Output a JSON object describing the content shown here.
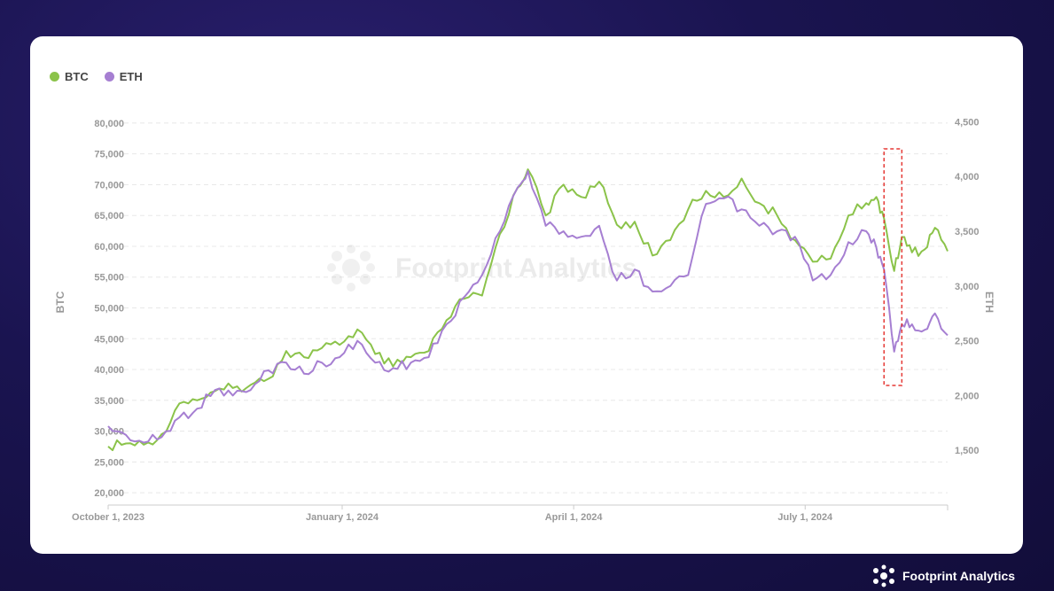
{
  "colors": {
    "btc": "#8bc34a",
    "eth": "#a67fd2",
    "highlight": "#e53935",
    "grid": "#e8e8e8",
    "axis_text": "#999999"
  },
  "legend": [
    {
      "name": "BTC"
    },
    {
      "name": "ETH"
    }
  ],
  "watermark": "Footprint Analytics",
  "brand": {
    "text": "Footprint Analytics",
    "icon": "footprint-logo-icon"
  },
  "chart_data": {
    "type": "line",
    "xlabel": "",
    "y_left_label": "BTC",
    "y_right_label": "ETH",
    "x_tick_labels": [
      "October 1, 2023",
      "January 1, 2024",
      "April 1, 2024",
      "July 1, 2024"
    ],
    "y_left_ticks": [
      20000,
      25000,
      30000,
      35000,
      40000,
      45000,
      50000,
      55000,
      60000,
      65000,
      70000,
      75000,
      80000
    ],
    "y_left_tick_labels": [
      "20,000",
      "25,000",
      "30,000",
      "35,000",
      "40,000",
      "45,000",
      "50,000",
      "55,000",
      "60,000",
      "65,000",
      "70,000",
      "75,000",
      "80,000"
    ],
    "y_right_ticks": [
      1500,
      2000,
      2500,
      3000,
      3500,
      4000,
      4500
    ],
    "y_right_tick_labels": [
      "1,500",
      "2,000",
      "2,500",
      "3,000",
      "3,500",
      "4,000",
      "4,500"
    ],
    "x_range": [
      "2023-10-01",
      "2024-08-26"
    ],
    "y_left_range": [
      18000,
      82000
    ],
    "y_right_range": [
      1000,
      4600
    ],
    "grid": true,
    "legend_position": "top-left",
    "highlight_range": [
      "2024-08-01",
      "2024-08-08"
    ],
    "series": [
      {
        "name": "BTC",
        "axis": "left",
        "points": [
          [
            "2023-10-01",
            27500
          ],
          [
            "2023-10-08",
            28000
          ],
          [
            "2023-10-15",
            27800
          ],
          [
            "2023-10-22",
            29500
          ],
          [
            "2023-10-29",
            34500
          ],
          [
            "2023-11-05",
            35000
          ],
          [
            "2023-11-12",
            36500
          ],
          [
            "2023-11-19",
            37000
          ],
          [
            "2023-11-26",
            37500
          ],
          [
            "2023-12-03",
            38500
          ],
          [
            "2023-12-10",
            43000
          ],
          [
            "2023-12-17",
            42000
          ],
          [
            "2023-12-24",
            43500
          ],
          [
            "2023-12-31",
            44000
          ],
          [
            "2024-01-07",
            46500
          ],
          [
            "2024-01-14",
            42500
          ],
          [
            "2024-01-21",
            40500
          ],
          [
            "2024-01-28",
            42000
          ],
          [
            "2024-02-04",
            43000
          ],
          [
            "2024-02-11",
            48000
          ],
          [
            "2024-02-18",
            51500
          ],
          [
            "2024-02-25",
            52000
          ],
          [
            "2024-03-03",
            62000
          ],
          [
            "2024-03-10",
            69500
          ],
          [
            "2024-03-14",
            72500
          ],
          [
            "2024-03-21",
            65000
          ],
          [
            "2024-03-28",
            70000
          ],
          [
            "2024-04-04",
            68000
          ],
          [
            "2024-04-11",
            70500
          ],
          [
            "2024-04-18",
            63500
          ],
          [
            "2024-04-25",
            64000
          ],
          [
            "2024-05-02",
            58500
          ],
          [
            "2024-05-09",
            61000
          ],
          [
            "2024-05-16",
            66000
          ],
          [
            "2024-05-23",
            69000
          ],
          [
            "2024-05-30",
            68000
          ],
          [
            "2024-06-06",
            71000
          ],
          [
            "2024-06-13",
            67000
          ],
          [
            "2024-06-20",
            65000
          ],
          [
            "2024-06-27",
            61000
          ],
          [
            "2024-07-04",
            57500
          ],
          [
            "2024-07-11",
            58000
          ],
          [
            "2024-07-18",
            65000
          ],
          [
            "2024-07-25",
            67000
          ],
          [
            "2024-07-29",
            68000
          ],
          [
            "2024-08-01",
            64500
          ],
          [
            "2024-08-05",
            56000
          ],
          [
            "2024-08-08",
            61500
          ],
          [
            "2024-08-12",
            59000
          ],
          [
            "2024-08-17",
            59500
          ],
          [
            "2024-08-21",
            63000
          ],
          [
            "2024-08-26",
            59200
          ]
        ]
      },
      {
        "name": "ETH",
        "axis": "right",
        "points": [
          [
            "2023-10-01",
            1720
          ],
          [
            "2023-10-08",
            1640
          ],
          [
            "2023-10-15",
            1570
          ],
          [
            "2023-10-22",
            1620
          ],
          [
            "2023-10-29",
            1800
          ],
          [
            "2023-11-05",
            1880
          ],
          [
            "2023-11-12",
            2050
          ],
          [
            "2023-11-19",
            2000
          ],
          [
            "2023-11-26",
            2050
          ],
          [
            "2023-12-03",
            2230
          ],
          [
            "2023-12-10",
            2300
          ],
          [
            "2023-12-17",
            2200
          ],
          [
            "2023-12-24",
            2300
          ],
          [
            "2023-12-31",
            2350
          ],
          [
            "2024-01-07",
            2500
          ],
          [
            "2024-01-14",
            2300
          ],
          [
            "2024-01-21",
            2250
          ],
          [
            "2024-01-28",
            2300
          ],
          [
            "2024-02-04",
            2350
          ],
          [
            "2024-02-11",
            2650
          ],
          [
            "2024-02-18",
            2900
          ],
          [
            "2024-02-25",
            3100
          ],
          [
            "2024-03-03",
            3500
          ],
          [
            "2024-03-10",
            3900
          ],
          [
            "2024-03-14",
            4050
          ],
          [
            "2024-03-21",
            3550
          ],
          [
            "2024-03-28",
            3500
          ],
          [
            "2024-04-04",
            3450
          ],
          [
            "2024-04-11",
            3550
          ],
          [
            "2024-04-18",
            3050
          ],
          [
            "2024-04-25",
            3150
          ],
          [
            "2024-05-02",
            2950
          ],
          [
            "2024-05-09",
            3000
          ],
          [
            "2024-05-16",
            3100
          ],
          [
            "2024-05-23",
            3750
          ],
          [
            "2024-05-30",
            3800
          ],
          [
            "2024-06-06",
            3700
          ],
          [
            "2024-06-13",
            3550
          ],
          [
            "2024-06-20",
            3500
          ],
          [
            "2024-06-27",
            3450
          ],
          [
            "2024-07-04",
            3050
          ],
          [
            "2024-07-11",
            3100
          ],
          [
            "2024-07-18",
            3400
          ],
          [
            "2024-07-25",
            3500
          ],
          [
            "2024-07-29",
            3350
          ],
          [
            "2024-08-01",
            3150
          ],
          [
            "2024-08-05",
            2400
          ],
          [
            "2024-08-08",
            2650
          ],
          [
            "2024-08-12",
            2650
          ],
          [
            "2024-08-17",
            2600
          ],
          [
            "2024-08-21",
            2750
          ],
          [
            "2024-08-26",
            2550
          ]
        ]
      }
    ]
  }
}
